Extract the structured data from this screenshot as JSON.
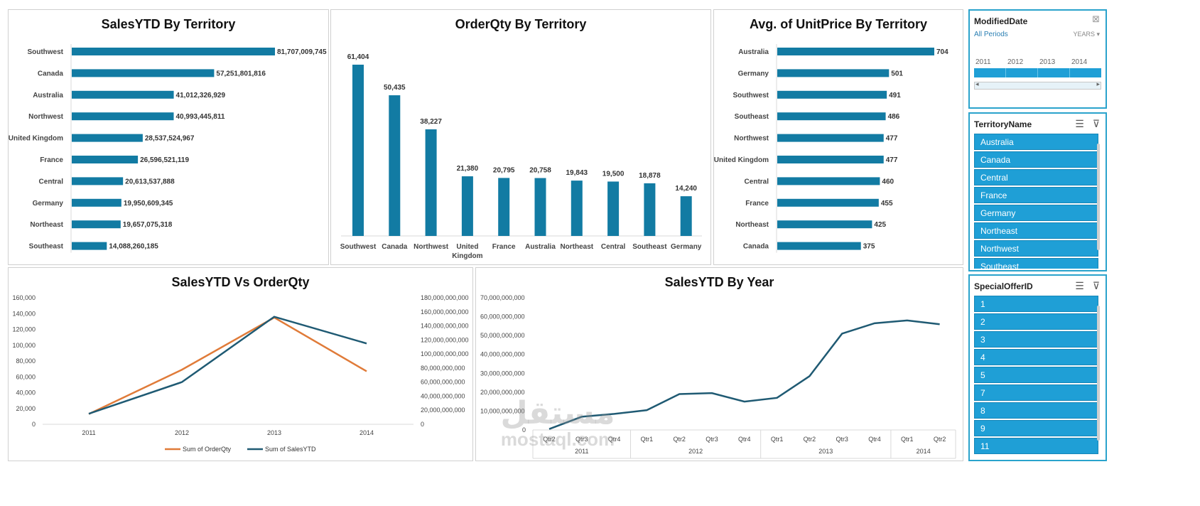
{
  "colors": {
    "bar": "#127ba3",
    "orange": "#e07b39",
    "navy": "#1f5a73",
    "slicer": "#1f9fd6"
  },
  "chart1": {
    "title": "SalesYTD By Territory"
  },
  "chart2": {
    "title": "OrderQty By Territory"
  },
  "chart3": {
    "title": "Avg. of UnitPrice By Territory"
  },
  "chart4": {
    "title": "SalesYTD Vs OrderQty",
    "legend": [
      "Sum of OrderQty",
      "Sum of SalesYTD"
    ]
  },
  "chart5": {
    "title": "SalesYTD By Year"
  },
  "chart_data": [
    {
      "type": "bar",
      "orientation": "horizontal",
      "title": "SalesYTD By Territory",
      "categories": [
        "Southwest",
        "Canada",
        "Australia",
        "Northwest",
        "United Kingdom",
        "France",
        "Central",
        "Germany",
        "Northeast",
        "Southeast"
      ],
      "values": [
        81707009745,
        57251801816,
        41012326929,
        40993445811,
        28537524967,
        26596521119,
        20613537888,
        19950609345,
        19657075318,
        14088260185
      ],
      "labels": [
        "81,707,009,745",
        "57,251,801,816",
        "41,012,326,929",
        "40,993,445,811",
        "28,537,524,967",
        "26,596,521,119",
        "20,613,537,888",
        "19,950,609,345",
        "19,657,075,318",
        "14,088,260,185"
      ]
    },
    {
      "type": "bar",
      "orientation": "vertical",
      "title": "OrderQty By Territory",
      "categories": [
        "Southwest",
        "Canada",
        "Northwest",
        "United Kingdom",
        "France",
        "Australia",
        "Northeast",
        "Central",
        "Southeast",
        "Germany"
      ],
      "category_lines": [
        [
          "Southwest"
        ],
        [
          "Canada"
        ],
        [
          "Northwest"
        ],
        [
          "United",
          "Kingdom"
        ],
        [
          "France"
        ],
        [
          "Australia"
        ],
        [
          "Northeast"
        ],
        [
          "Central"
        ],
        [
          "Southeast"
        ],
        [
          "Germany"
        ]
      ],
      "values": [
        61404,
        50435,
        38227,
        21380,
        20795,
        20758,
        19843,
        19500,
        18878,
        14240
      ],
      "labels": [
        "61,404",
        "50,435",
        "38,227",
        "21,380",
        "20,795",
        "20,758",
        "19,843",
        "19,500",
        "18,878",
        "14,240"
      ]
    },
    {
      "type": "bar",
      "orientation": "horizontal",
      "title": "Avg. of UnitPrice By Territory",
      "categories": [
        "Australia",
        "Germany",
        "Southwest",
        "Southeast",
        "Northwest",
        "United Kingdom",
        "Central",
        "France",
        "Northeast",
        "Canada"
      ],
      "values": [
        704,
        501,
        491,
        486,
        477,
        477,
        460,
        455,
        425,
        375
      ],
      "labels": [
        "704",
        "501",
        "491",
        "486",
        "477",
        "477",
        "460",
        "455",
        "425",
        "375"
      ]
    },
    {
      "type": "line",
      "title": "SalesYTD Vs OrderQty",
      "categories": [
        "2011",
        "2012",
        "2013",
        "2014"
      ],
      "y_left_ticks": [
        "0",
        "20,000",
        "40,000",
        "60,000",
        "80,000",
        "100,000",
        "120,000",
        "140,000",
        "160,000"
      ],
      "y_right_ticks": [
        "0",
        "20,000,000,000",
        "40,000,000,000",
        "60,000,000,000",
        "80,000,000,000",
        "100,000,000,000",
        "120,000,000,000",
        "140,000,000,000",
        "160,000,000,000",
        "180,000,000,000"
      ],
      "ylim_left": [
        0,
        160000
      ],
      "ylim_right": [
        0,
        180000000000
      ],
      "series": [
        {
          "name": "Sum of OrderQty",
          "axis": "left",
          "values": [
            13000,
            69000,
            135000,
            67000
          ]
        },
        {
          "name": "Sum of SalesYTD",
          "axis": "right",
          "values": [
            15000000000,
            60000000000,
            153000000000,
            115000000000
          ]
        }
      ]
    },
    {
      "type": "line",
      "title": "SalesYTD By Year",
      "quarters": [
        "Qtr2",
        "Qtr3",
        "Qtr4",
        "Qtr1",
        "Qtr2",
        "Qtr3",
        "Qtr4",
        "Qtr1",
        "Qtr2",
        "Qtr3",
        "Qtr4",
        "Qtr1",
        "Qtr2"
      ],
      "years": [
        {
          "label": "2011",
          "span": 3
        },
        {
          "label": "2012",
          "span": 4
        },
        {
          "label": "2013",
          "span": 4
        },
        {
          "label": "2014",
          "span": 2
        }
      ],
      "y_ticks": [
        "0",
        "10,000,000,000",
        "20,000,000,000",
        "30,000,000,000",
        "40,000,000,000",
        "50,000,000,000",
        "60,000,000,000",
        "70,000,000,000"
      ],
      "ylim": [
        0,
        70000000000
      ],
      "values": [
        500000000,
        7000000000,
        8500000000,
        10500000000,
        19000000000,
        19500000000,
        15000000000,
        17000000000,
        28500000000,
        51000000000,
        56500000000,
        58000000000,
        56000000000
      ]
    }
  ],
  "slicers": {
    "date": {
      "title": "ModifiedDate",
      "periods": "All Periods",
      "level": "YEARS",
      "years": [
        "2011",
        "2012",
        "2013",
        "2014"
      ]
    },
    "territory": {
      "title": "TerritoryName",
      "items": [
        "Australia",
        "Canada",
        "Central",
        "France",
        "Germany",
        "Northeast",
        "Northwest",
        "Southeast"
      ]
    },
    "offer": {
      "title": "SpecialOfferID",
      "items": [
        "1",
        "2",
        "3",
        "4",
        "5",
        "7",
        "8",
        "9",
        "11"
      ]
    }
  },
  "watermark": {
    "arabic": "مستقل",
    "latin": "mostaql.com"
  }
}
